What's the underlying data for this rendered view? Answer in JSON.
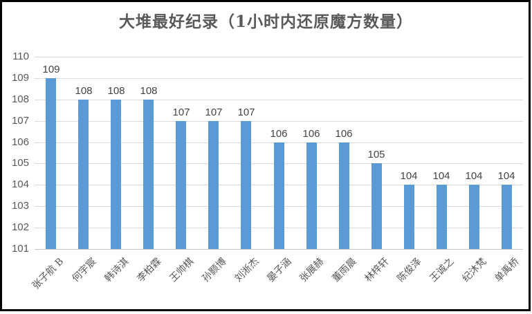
{
  "chart_data": {
    "type": "bar",
    "title": "大堆最好纪录（1小时内还原魔方数量）",
    "categories": [
      "张子航 B",
      "何宇宸",
      "韩诗淇",
      "李柏霖",
      "王帅棋",
      "孙颢博",
      "刘淅杰",
      "晏子涵",
      "张展赫",
      "董雨晨",
      "林梓轩",
      "陈俊泽",
      "王诚之",
      "纪沐梵",
      "单禹桥"
    ],
    "values": [
      109,
      108,
      108,
      108,
      107,
      107,
      107,
      106,
      106,
      106,
      105,
      104,
      104,
      104,
      104
    ],
    "yticks": [
      101,
      102,
      103,
      104,
      105,
      106,
      107,
      108,
      109,
      110
    ],
    "ylim": [
      101,
      110
    ],
    "xlabel": "",
    "ylabel": "",
    "grid": "horizontal",
    "legend": "none",
    "data_labels_shown": true,
    "x_label_rotation_deg": 45,
    "colors": {
      "bar": "#5B9BD5",
      "gridline": "#D9D9D9",
      "axis_line": "#C6C6C6",
      "title_text": "#595959",
      "tick_text": "#595959",
      "value_label_text": "#444444",
      "frame_border": "#000000",
      "background": "#FFFFFF"
    }
  }
}
